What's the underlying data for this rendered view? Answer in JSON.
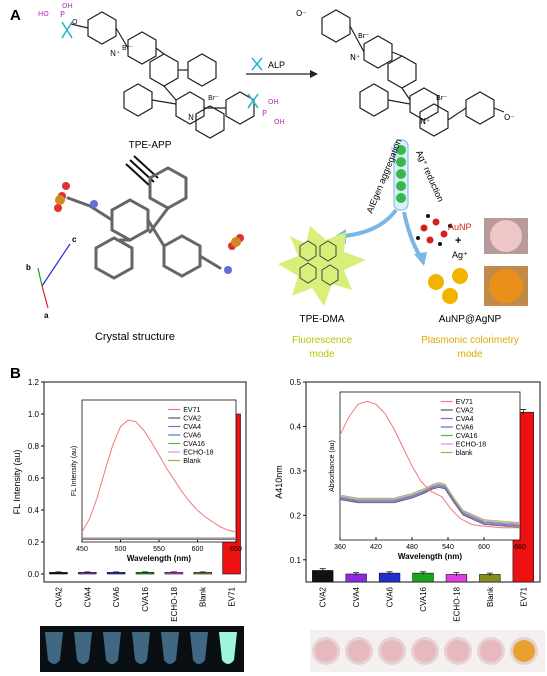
{
  "panel_a": {
    "label": "A",
    "probe_name": "TPE-APP",
    "enzyme_label": "ALP",
    "crystal_label": "Crystal structure",
    "aggregation_label": "AIEgen aggregation",
    "reduction_label": "Ag⁺ reduction",
    "product_label": "TPE-DMA",
    "fluorescence_mode": "Fluorescence mode",
    "aunp_label": "AuNP",
    "ag_plus": "Ag⁺",
    "plus_sign": "+",
    "core_shell_label": "AuNP@AgNP",
    "colorimetry_mode": "Plasmonic colorimetry mode",
    "axis_a": "a",
    "axis_b": "b",
    "axis_c": "c",
    "br_minus": "Br⁻",
    "oh": "OH",
    "ho": "HO",
    "p": "P",
    "o": "O",
    "n_plus": "N⁺",
    "o_minus": "O⁻",
    "colors": {
      "phosphate": "#b030c0",
      "fluorescence_text": "#b8c400",
      "colorimetry_text": "#e0a800",
      "aunp_red": "#d61e1e",
      "gold_particle": "#f0b400",
      "green_glow": "#d8f07a",
      "arrow_blue": "#79b6e4"
    }
  },
  "panel_b": {
    "label": "B",
    "chart_data": [
      {
        "type": "bar",
        "categories": [
          "CVA2",
          "CVA4",
          "CVA6",
          "CVA16",
          "ECHO-18",
          "Blank",
          "EV71"
        ],
        "values": [
          0.01,
          0.01,
          0.01,
          0.01,
          0.01,
          0.01,
          1.0
        ],
        "errors": [
          0.003,
          0.003,
          0.003,
          0.003,
          0.003,
          0.003,
          0.012
        ],
        "colors": [
          "#111111",
          "#8a2be2",
          "#1f2fd0",
          "#1aa21a",
          "#e040e0",
          "#8a8a1a",
          "#ee1111"
        ],
        "ylabel": "FL Intensity (au)",
        "ylim": [
          -0.05,
          1.2
        ],
        "yticks": [
          "0.0",
          "0.2",
          "0.4",
          "0.6",
          "0.8",
          "1.0",
          "1.2"
        ],
        "inset": {
          "type": "line",
          "xlabel": "Wavelength (nm)",
          "ylabel": "FL Intensity (au)",
          "xlim": [
            450,
            650
          ],
          "xticks": [
            "450",
            "500",
            "550",
            "600",
            "650"
          ],
          "legend": [
            "EV71",
            "CVA2",
            "CVA4",
            "CVA6",
            "CVA16",
            "ECHO-18",
            "Blank"
          ],
          "legend_colors": [
            "#f07a7a",
            "#555555",
            "#9a5ad0",
            "#5a6ad8",
            "#53b653",
            "#e28ee2",
            "#a9a94a"
          ],
          "series_ev71": {
            "x": [
              450,
              460,
              470,
              480,
              490,
              500,
              510,
              520,
              530,
              540,
              550,
              560,
              570,
              580,
              590,
              600,
              610,
              620,
              630,
              640,
              650
            ],
            "y": [
              0.06,
              0.14,
              0.27,
              0.43,
              0.58,
              0.69,
              0.73,
              0.72,
              0.67,
              0.6,
              0.52,
              0.44,
              0.37,
              0.3,
              0.24,
              0.19,
              0.15,
              0.12,
              0.09,
              0.07,
              0.06
            ]
          },
          "baseline_y": 0.015
        }
      },
      {
        "type": "bar",
        "categories": [
          "CVA2",
          "CVA4",
          "CVA6",
          "CVA16",
          "ECHO-18",
          "Blank",
          "EV71"
        ],
        "values": [
          0.076,
          0.068,
          0.07,
          0.07,
          0.067,
          0.067,
          0.432
        ],
        "errors": [
          0.004,
          0.003,
          0.003,
          0.003,
          0.004,
          0.003,
          0.006
        ],
        "colors": [
          "#111111",
          "#8a2be2",
          "#1f2fd0",
          "#1aa21a",
          "#e040e0",
          "#8a8a1a",
          "#ee1111"
        ],
        "ylabel": "A410nm",
        "ylim": [
          0.05,
          0.5
        ],
        "yticks": [
          "0.1",
          "0.2",
          "0.3",
          "0.4",
          "0.5"
        ],
        "inset": {
          "type": "line",
          "xlabel": "Wavelength (nm)",
          "ylabel": "Absorbance (au)",
          "xlim": [
            360,
            660
          ],
          "xticks": [
            "360",
            "420",
            "480",
            "540",
            "600",
            "660"
          ],
          "legend": [
            "EV71",
            "CVA2",
            "CVA4",
            "CVA6",
            "CVA16",
            "ECHO-18",
            "blank"
          ],
          "legend_colors": [
            "#f07a7a",
            "#555555",
            "#9a5ad0",
            "#5a6ad8",
            "#53b653",
            "#e28ee2",
            "#a9a94a"
          ],
          "series_ev71": {
            "x": [
              360,
              375,
              390,
              405,
              420,
              435,
              450,
              465,
              480,
              495,
              510,
              520,
              530,
              545,
              560,
              580,
              600,
              630,
              660
            ],
            "y": [
              0.34,
              0.4,
              0.44,
              0.45,
              0.44,
              0.41,
              0.36,
              0.3,
              0.24,
              0.19,
              0.16,
              0.15,
              0.14,
              0.1,
              0.07,
              0.05,
              0.045,
              0.04,
              0.04
            ]
          },
          "series_others": {
            "x": [
              360,
              390,
              420,
              450,
              480,
              500,
              515,
              525,
              535,
              550,
              565,
              600,
              660
            ],
            "y": [
              0.14,
              0.13,
              0.13,
              0.13,
              0.145,
              0.16,
              0.175,
              0.18,
              0.175,
              0.13,
              0.09,
              0.06,
              0.05
            ]
          }
        }
      }
    ],
    "tube_strip_colors": [
      "#6fb3dc",
      "#6fb3dc",
      "#6fb3dc",
      "#6fb3dc",
      "#6fb3dc",
      "#6fb3dc",
      "#9ff5dc"
    ],
    "well_strip_colors": [
      "#e8b8c0",
      "#e8b8c0",
      "#e8b8c0",
      "#e8b8c0",
      "#e8b8c0",
      "#e8b8c0",
      "#e8a030"
    ]
  }
}
